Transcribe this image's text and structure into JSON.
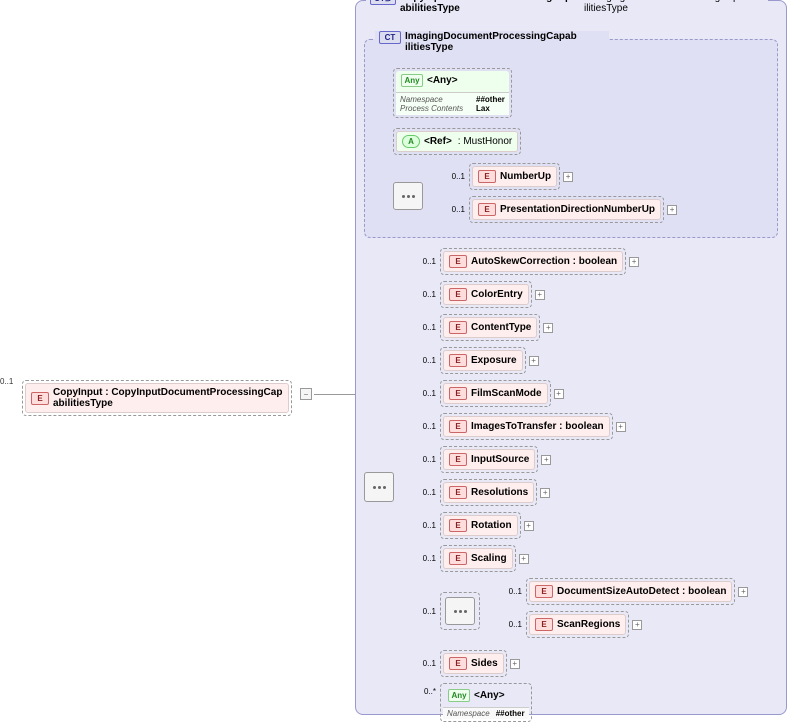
{
  "root": {
    "name": "CopyInput : CopyInputDocumentProcessingCap abilitiesType",
    "cardinality": "0..1"
  },
  "outerCT": {
    "name": "CopyInputDocumentProcessingCap abilitiesType",
    "base": ": ImagingDocumentProcessingCapab ilitiesType"
  },
  "innerCT": {
    "name": "ImagingDocumentProcessingCapab ilitiesType"
  },
  "anyTop": {
    "label": "<Any>",
    "namespace_k": "Namespace",
    "namespace_v": "##other",
    "process_k": "Process Contents",
    "process_v": "Lax"
  },
  "ref": {
    "label": "<Ref>",
    "type": ": MustHonor"
  },
  "refChildren": [
    {
      "t": "E",
      "label": "NumberUp",
      "card": "0..1"
    },
    {
      "t": "E",
      "label": "PresentationDirectionNumberUp",
      "card": "0..1"
    }
  ],
  "mainList": [
    {
      "t": "E",
      "label": "AutoSkewCorrection : boolean",
      "card": "0..1"
    },
    {
      "t": "E",
      "label": "ColorEntry",
      "card": "0..1"
    },
    {
      "t": "E",
      "label": "ContentType",
      "card": "0..1"
    },
    {
      "t": "E",
      "label": "Exposure",
      "card": "0..1"
    },
    {
      "t": "E",
      "label": "FilmScanMode",
      "card": "0..1"
    },
    {
      "t": "E",
      "label": "ImagesToTransfer : boolean",
      "card": "0..1"
    },
    {
      "t": "E",
      "label": "InputSource",
      "card": "0..1"
    },
    {
      "t": "E",
      "label": "Resolutions",
      "card": "0..1"
    },
    {
      "t": "E",
      "label": "Rotation",
      "card": "0..1"
    },
    {
      "t": "E",
      "label": "Scaling",
      "card": "0..1"
    }
  ],
  "subChoice": [
    {
      "t": "E",
      "label": "DocumentSizeAutoDetect : boolean",
      "card": "0..1"
    },
    {
      "t": "E",
      "label": "ScanRegions",
      "card": "0..1"
    }
  ],
  "subChoiceCard": "0..1",
  "sides": {
    "t": "E",
    "label": "Sides",
    "card": "0..1"
  },
  "anyBottom": {
    "label": "<Any>",
    "card": "0..*",
    "namespace_k": "Namespace",
    "namespace_v": "##other"
  }
}
